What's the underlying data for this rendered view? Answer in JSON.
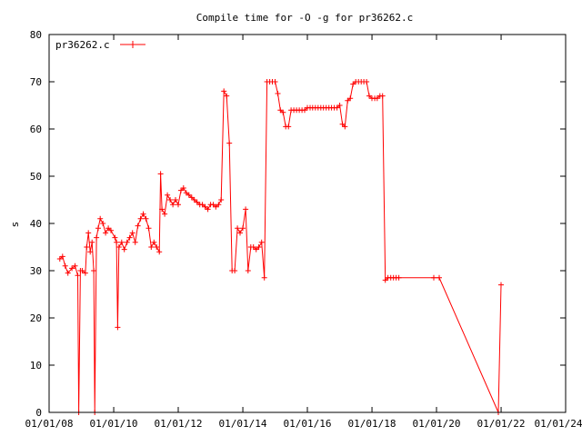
{
  "chart_data": {
    "type": "line",
    "title": "Compile time for -O -g for pr36262.c",
    "xlabel": "",
    "ylabel": "s",
    "xlim": [
      "2008-01-01",
      "2024-01-01"
    ],
    "ylim": [
      0,
      80
    ],
    "grid": false,
    "legend_position": "top-left",
    "x_tick_labels": [
      "01/01/08",
      "01/01/10",
      "01/01/12",
      "01/01/14",
      "01/01/16",
      "01/01/18",
      "01/01/20",
      "01/01/22",
      "01/01/24"
    ],
    "y_tick_labels": [
      "0",
      "10",
      "20",
      "30",
      "40",
      "50",
      "60",
      "70",
      "80"
    ],
    "series": [
      {
        "name": "pr36262.c",
        "color": "#ff0000",
        "points": [
          [
            "2008-05-01",
            32.5
          ],
          [
            "2008-06-01",
            33
          ],
          [
            "2008-07-01",
            31
          ],
          [
            "2008-08-01",
            29.5
          ],
          [
            "2008-09-15",
            30.5
          ],
          [
            "2008-10-20",
            31
          ],
          [
            "2008-11-20",
            29
          ],
          [
            "2008-12-01",
            0
          ],
          [
            "2008-12-20",
            30
          ],
          [
            "2009-01-10",
            30
          ],
          [
            "2009-02-15",
            29.5
          ],
          [
            "2009-03-01",
            35
          ],
          [
            "2009-03-20",
            38
          ],
          [
            "2009-04-10",
            34
          ],
          [
            "2009-05-01",
            36
          ],
          [
            "2009-05-20",
            30
          ],
          [
            "2009-06-01",
            0
          ],
          [
            "2009-06-20",
            37
          ],
          [
            "2009-07-10",
            39
          ],
          [
            "2009-08-01",
            41
          ],
          [
            "2009-09-01",
            40
          ],
          [
            "2009-10-01",
            38
          ],
          [
            "2009-11-01",
            39
          ],
          [
            "2009-12-01",
            38.5
          ],
          [
            "2010-01-15",
            37
          ],
          [
            "2010-02-01",
            36
          ],
          [
            "2010-02-15",
            18
          ],
          [
            "2010-03-01",
            35
          ],
          [
            "2010-04-01",
            36
          ],
          [
            "2010-05-01",
            34.5
          ],
          [
            "2010-06-01",
            36
          ],
          [
            "2010-07-01",
            37
          ],
          [
            "2010-08-01",
            38
          ],
          [
            "2010-09-01",
            36
          ],
          [
            "2010-10-01",
            39.5
          ],
          [
            "2010-11-01",
            41
          ],
          [
            "2010-12-01",
            42
          ],
          [
            "2011-01-01",
            41
          ],
          [
            "2011-02-01",
            39
          ],
          [
            "2011-03-01",
            35
          ],
          [
            "2011-04-01",
            36
          ],
          [
            "2011-05-01",
            35
          ],
          [
            "2011-06-01",
            34
          ],
          [
            "2011-06-15",
            50.5
          ],
          [
            "2011-07-01",
            43
          ],
          [
            "2011-08-01",
            42
          ],
          [
            "2011-09-01",
            46
          ],
          [
            "2011-10-01",
            45
          ],
          [
            "2011-11-01",
            44
          ],
          [
            "2011-12-01",
            45
          ],
          [
            "2012-01-01",
            44
          ],
          [
            "2012-02-01",
            47
          ],
          [
            "2012-03-01",
            47.5
          ],
          [
            "2012-04-01",
            46.5
          ],
          [
            "2012-05-01",
            46
          ],
          [
            "2012-06-01",
            45.5
          ],
          [
            "2012-07-01",
            45
          ],
          [
            "2012-08-01",
            44.5
          ],
          [
            "2012-09-01",
            44
          ],
          [
            "2012-10-01",
            44
          ],
          [
            "2012-11-01",
            43.5
          ],
          [
            "2012-12-01",
            43
          ],
          [
            "2013-01-01",
            44
          ],
          [
            "2013-02-01",
            44
          ],
          [
            "2013-03-01",
            43.5
          ],
          [
            "2013-04-01",
            44
          ],
          [
            "2013-05-01",
            45
          ],
          [
            "2013-06-01",
            68
          ],
          [
            "2013-07-01",
            67
          ],
          [
            "2013-08-01",
            57
          ],
          [
            "2013-09-01",
            30
          ],
          [
            "2013-10-01",
            30
          ],
          [
            "2013-11-01",
            39
          ],
          [
            "2013-12-01",
            38
          ],
          [
            "2014-01-01",
            39
          ],
          [
            "2014-02-01",
            43
          ],
          [
            "2014-03-01",
            30
          ],
          [
            "2014-04-01",
            35
          ],
          [
            "2014-05-01",
            35
          ],
          [
            "2014-06-01",
            34.5
          ],
          [
            "2014-07-01",
            35
          ],
          [
            "2014-08-01",
            36
          ],
          [
            "2014-09-01",
            28.5
          ],
          [
            "2014-10-01",
            70
          ],
          [
            "2014-11-01",
            70
          ],
          [
            "2014-12-01",
            70
          ],
          [
            "2015-01-01",
            70
          ],
          [
            "2015-02-01",
            67.5
          ],
          [
            "2015-03-01",
            64
          ],
          [
            "2015-04-01",
            63.5
          ],
          [
            "2015-05-01",
            60.5
          ],
          [
            "2015-06-01",
            60.5
          ],
          [
            "2015-07-01",
            64
          ],
          [
            "2015-08-01",
            64
          ],
          [
            "2015-09-01",
            64
          ],
          [
            "2015-10-01",
            64
          ],
          [
            "2015-11-01",
            64
          ],
          [
            "2015-12-01",
            64
          ],
          [
            "2016-01-01",
            64.5
          ],
          [
            "2016-02-01",
            64.5
          ],
          [
            "2016-03-01",
            64.5
          ],
          [
            "2016-04-01",
            64.5
          ],
          [
            "2016-05-01",
            64.5
          ],
          [
            "2016-06-01",
            64.5
          ],
          [
            "2016-07-01",
            64.5
          ],
          [
            "2016-08-01",
            64.5
          ],
          [
            "2016-09-01",
            64.5
          ],
          [
            "2016-10-01",
            64.5
          ],
          [
            "2016-11-01",
            64.5
          ],
          [
            "2016-12-01",
            64.5
          ],
          [
            "2017-01-01",
            65
          ],
          [
            "2017-02-01",
            61
          ],
          [
            "2017-03-01",
            60.5
          ],
          [
            "2017-04-01",
            66
          ],
          [
            "2017-05-01",
            66.5
          ],
          [
            "2017-06-01",
            69.5
          ],
          [
            "2017-07-01",
            70
          ],
          [
            "2017-08-01",
            70
          ],
          [
            "2017-09-01",
            70
          ],
          [
            "2017-10-01",
            70
          ],
          [
            "2017-11-01",
            70
          ],
          [
            "2017-12-01",
            67
          ],
          [
            "2018-01-01",
            66.5
          ],
          [
            "2018-02-01",
            66.5
          ],
          [
            "2018-03-01",
            66.5
          ],
          [
            "2018-04-01",
            67
          ],
          [
            "2018-05-01",
            67
          ],
          [
            "2018-06-01",
            28
          ],
          [
            "2018-07-01",
            28.5
          ],
          [
            "2018-08-01",
            28.5
          ],
          [
            "2018-09-01",
            28.5
          ],
          [
            "2018-10-01",
            28.5
          ],
          [
            "2018-11-01",
            28.5
          ],
          [
            "2019-12-01",
            28.5
          ],
          [
            "2020-02-01",
            28.5
          ],
          [
            "2021-12-01",
            0
          ],
          [
            "2022-01-01",
            27
          ]
        ]
      }
    ]
  }
}
